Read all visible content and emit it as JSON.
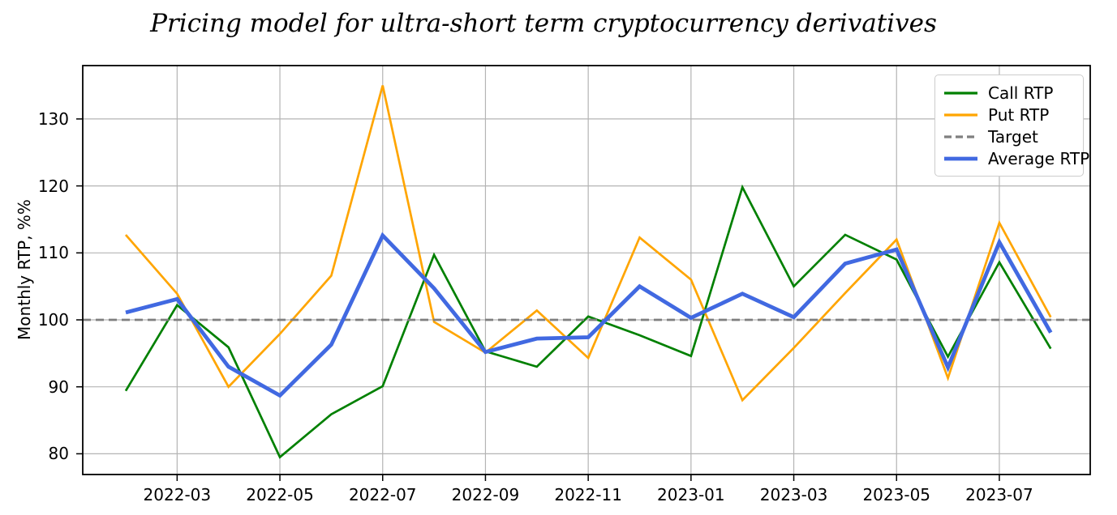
{
  "chart_data": {
    "type": "line",
    "title": "Pricing model for ultra-short term cryptocurrency derivatives",
    "xlabel": "",
    "ylabel": "Monthly RTP, %%",
    "grid": true,
    "legend_position": "upper right",
    "ylim": [
      76.9,
      138.0
    ],
    "yticks": [
      80,
      90,
      100,
      110,
      120,
      130
    ],
    "x": [
      "2022-02",
      "2022-03",
      "2022-04",
      "2022-05",
      "2022-06",
      "2022-07",
      "2022-08",
      "2022-09",
      "2022-10",
      "2022-11",
      "2022-12",
      "2023-01",
      "2023-02",
      "2023-03",
      "2023-04",
      "2023-05",
      "2023-06",
      "2023-07",
      "2023-08"
    ],
    "x_tick_labels": [
      "2022-03",
      "2022-05",
      "2022-07",
      "2022-09",
      "2022-11",
      "2023-01",
      "2023-03",
      "2023-05",
      "2023-07"
    ],
    "series": [
      {
        "name": "Call RTP",
        "kind": "line",
        "color": "#008000",
        "line_width": 2.7,
        "dash": "solid",
        "values": [
          89.4,
          102.2,
          95.9,
          79.5,
          85.9,
          90.1,
          109.7,
          95.3,
          93.0,
          100.5,
          97.7,
          94.6,
          119.8,
          105.0,
          112.7,
          109.0,
          94.5,
          108.6,
          95.7
        ]
      },
      {
        "name": "Put RTP",
        "kind": "line",
        "color": "#FFA500",
        "line_width": 2.7,
        "dash": "solid",
        "values": [
          112.7,
          103.9,
          90.0,
          97.9,
          106.6,
          135.0,
          99.7,
          95.1,
          101.4,
          94.3,
          112.3,
          106.0,
          88.0,
          95.8,
          104.0,
          112.0,
          91.3,
          114.5,
          100.4
        ]
      },
      {
        "name": "Target",
        "kind": "hline",
        "color": "#7f7f7f",
        "line_width": 2.7,
        "dash": "dashed",
        "value": 100
      },
      {
        "name": "Average RTP",
        "kind": "line",
        "color": "#4169E1",
        "line_width": 4.8,
        "dash": "solid",
        "values": [
          101.1,
          103.1,
          93.0,
          88.7,
          96.3,
          112.6,
          104.7,
          95.2,
          97.2,
          97.4,
          105.0,
          100.3,
          103.9,
          100.4,
          108.4,
          110.5,
          92.9,
          111.6,
          98.1
        ]
      }
    ],
    "colors": {
      "grid": "#b4b4b4",
      "spine": "#000000",
      "background": "#ffffff"
    }
  }
}
